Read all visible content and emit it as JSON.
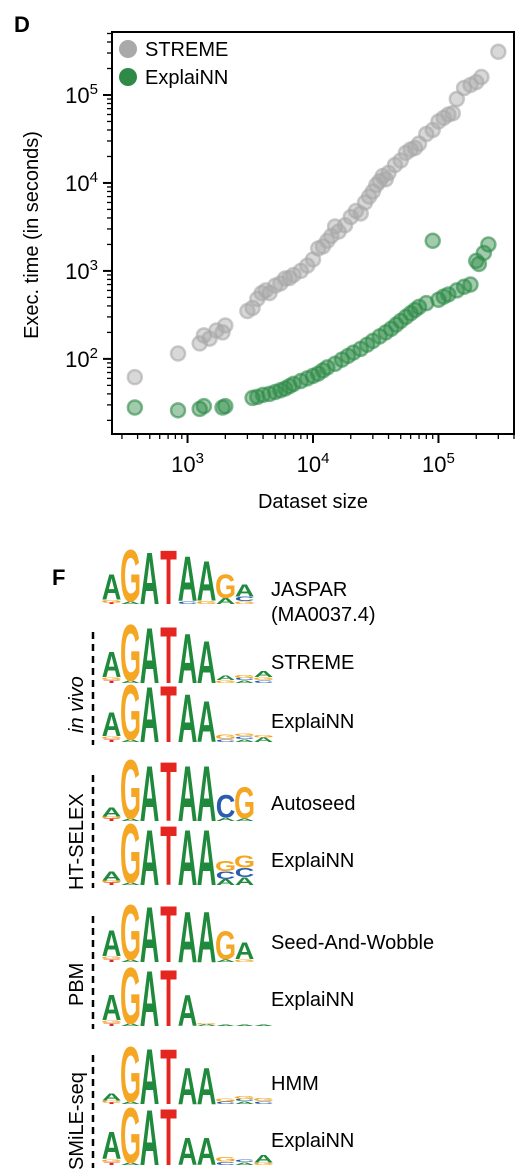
{
  "panels": {
    "d": "D",
    "f": "F"
  },
  "chart_data": {
    "type": "scatter",
    "xlabel": "Dataset size",
    "ylabel": "Exec. time (in seconds)",
    "xscale": "log",
    "yscale": "log",
    "xlim": [
      250,
      400000
    ],
    "ylim": [
      14,
      520000
    ],
    "xticks": [
      {
        "value": 1000,
        "label": "10^3"
      },
      {
        "value": 10000,
        "label": "10^4"
      },
      {
        "value": 100000,
        "label": "10^5"
      }
    ],
    "yticks": [
      {
        "value": 100,
        "label": "10^2"
      },
      {
        "value": 1000,
        "label": "10^3"
      },
      {
        "value": 10000,
        "label": "10^4"
      },
      {
        "value": 100000,
        "label": "10^5"
      }
    ],
    "legend_position": "top-left",
    "grid": false,
    "series": [
      {
        "name": "STREME",
        "color": "#a9a9a9",
        "x": [
          380,
          840,
          1250,
          1350,
          1500,
          1700,
          1900,
          2000,
          3000,
          3300,
          3600,
          3900,
          4200,
          4500,
          5000,
          5500,
          6000,
          6500,
          7000,
          8000,
          9000,
          10000,
          11000,
          12000,
          13000,
          14000,
          15000,
          16000,
          18000,
          20000,
          22000,
          24000,
          26000,
          28000,
          30000,
          32000,
          34000,
          36000,
          38000,
          40000,
          45000,
          50000,
          55000,
          60000,
          65000,
          70000,
          80000,
          90000,
          100000,
          110000,
          120000,
          130000,
          140000,
          160000,
          180000,
          200000,
          220000,
          300000
        ],
        "y": [
          62,
          115,
          150,
          185,
          170,
          210,
          200,
          240,
          350,
          380,
          480,
          560,
          600,
          560,
          680,
          720,
          820,
          830,
          900,
          1000,
          1150,
          1350,
          1800,
          1900,
          2200,
          2500,
          3200,
          2800,
          3300,
          4100,
          4800,
          4500,
          6000,
          7000,
          8000,
          9500,
          10500,
          12000,
          11000,
          13000,
          16000,
          18000,
          22000,
          24000,
          25000,
          28000,
          36000,
          40000,
          50000,
          55000,
          60000,
          62000,
          90000,
          120000,
          130000,
          140000,
          160000,
          310000
        ]
      },
      {
        "name": "ExplaiNN",
        "color": "#2e8b47",
        "x": [
          380,
          840,
          1250,
          1350,
          1900,
          2000,
          3300,
          3600,
          4000,
          4500,
          5000,
          5500,
          6000,
          6500,
          7000,
          8000,
          9000,
          10000,
          11000,
          12000,
          13000,
          15000,
          17000,
          19000,
          21000,
          24000,
          27000,
          30000,
          34000,
          38000,
          42000,
          46000,
          50000,
          55000,
          60000,
          65000,
          70000,
          80000,
          90000,
          100000,
          110000,
          120000,
          140000,
          160000,
          180000,
          200000,
          210000,
          230000,
          250000
        ],
        "y": [
          28,
          26,
          27,
          29,
          28,
          29,
          36,
          37,
          39,
          40,
          42,
          44,
          46,
          49,
          52,
          56,
          60,
          64,
          68,
          74,
          80,
          88,
          98,
          108,
          118,
          130,
          145,
          160,
          180,
          200,
          220,
          245,
          270,
          300,
          330,
          360,
          390,
          430,
          2200,
          470,
          510,
          540,
          600,
          660,
          700,
          1300,
          1200,
          1600,
          2000
        ]
      }
    ]
  },
  "motifs": {
    "jaspar": {
      "label": "JASPAR\n(MA0037.4)",
      "label_lines": [
        "JASPAR",
        "(MA0037.4)"
      ]
    },
    "groups": [
      {
        "name": "in vivo",
        "items": [
          "STREME",
          "ExplaiNN"
        ]
      },
      {
        "name": "HT-SELEX",
        "items": [
          "Autoseed",
          "ExplaiNN"
        ]
      },
      {
        "name": "PBM",
        "items": [
          "Seed-And-Wobble",
          "ExplaiNN"
        ]
      },
      {
        "name": "SMiLE-seq",
        "items": [
          "HMM",
          "ExplaiNN"
        ]
      }
    ],
    "base_colors": {
      "A": "#1f8a3c",
      "G": "#f5a623",
      "T": "#e52620",
      "C": "#2a5db0"
    }
  }
}
